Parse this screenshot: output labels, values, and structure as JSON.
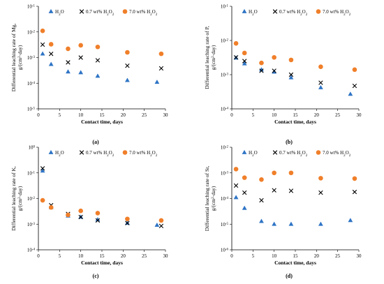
{
  "legend_labels": {
    "h2o": [
      "H",
      "2",
      "O"
    ],
    "p07": [
      "0.7 wt% H",
      "2",
      "O",
      "2"
    ],
    "p70": [
      "7.0 wt% H",
      "2",
      "O",
      "2"
    ]
  },
  "colors": {
    "h2o": "#2e74c5",
    "p07": "#000000",
    "p70": "#f07f2a"
  },
  "icons": {
    "h2o": "triangle-marker",
    "p07": "x-marker",
    "p70": "circle-marker"
  },
  "chart_data": [
    {
      "type": "scatter",
      "panel_label": "(a)",
      "xlabel": "Contact time, days",
      "ylabel_line1": "Differential leaching rate of Mg,",
      "ylabel_line2": [
        "g/(cm",
        "2",
        "·day)"
      ],
      "xlim": [
        0,
        30
      ],
      "xticks": [
        0,
        5,
        10,
        15,
        20,
        25,
        30
      ],
      "yscale": "log",
      "ylim_exp": [
        -5,
        -1
      ],
      "series": [
        {
          "key": "h2o",
          "x": [
            1,
            3,
            7,
            10,
            14,
            21,
            28
          ],
          "y": [
            0.0014,
            0.00055,
            0.00028,
            0.00026,
            0.00019,
            0.00013,
            0.00011
          ]
        },
        {
          "key": "p07",
          "x": [
            1,
            3,
            7,
            10,
            14,
            21,
            29
          ],
          "y": [
            0.0032,
            0.0014,
            0.00065,
            0.001,
            0.00078,
            0.00048,
            0.00038
          ]
        },
        {
          "key": "p70",
          "x": [
            1,
            3,
            7,
            10,
            14,
            21,
            29
          ],
          "y": [
            0.011,
            0.0033,
            0.0022,
            0.003,
            0.0026,
            0.0016,
            0.0014
          ]
        }
      ]
    },
    {
      "type": "scatter",
      "panel_label": "(b)",
      "xlabel": "Contact time, days",
      "ylabel_line1": "Differential leaching rate of P,",
      "ylabel_line2": [
        "g/(cm",
        "2",
        "·day)"
      ],
      "xlim": [
        0,
        30
      ],
      "xticks": [
        0,
        5,
        10,
        15,
        20,
        25,
        30
      ],
      "yscale": "log",
      "ylim_exp": [
        -4,
        -1
      ],
      "series": [
        {
          "key": "h2o",
          "x": [
            1,
            3,
            7,
            10,
            14,
            21,
            28
          ],
          "y": [
            0.0031,
            0.0021,
            0.0014,
            0.0012,
            0.00082,
            0.00042,
            0.00027
          ]
        },
        {
          "key": "p07",
          "x": [
            1,
            3,
            7,
            10,
            14,
            21,
            29
          ],
          "y": [
            0.0032,
            0.0025,
            0.0013,
            0.0013,
            0.001,
            0.00058,
            0.00047
          ]
        },
        {
          "key": "p70",
          "x": [
            1,
            3,
            7,
            10,
            14,
            21,
            29
          ],
          "y": [
            0.0082,
            0.0043,
            0.0022,
            0.0032,
            0.0027,
            0.0017,
            0.0014
          ]
        }
      ]
    },
    {
      "type": "scatter",
      "panel_label": "(c)",
      "xlabel": "Contact time, days",
      "ylabel_line1": "Differential leaching rate of K,",
      "ylabel_line2": [
        "g/(cm",
        "2",
        "·day)"
      ],
      "xlim": [
        0,
        30
      ],
      "xticks": [
        0,
        5,
        10,
        15,
        20,
        25,
        30
      ],
      "yscale": "log",
      "ylim_exp": [
        -4,
        0
      ],
      "series": [
        {
          "key": "h2o",
          "x": [
            1,
            3,
            7,
            10,
            14,
            21,
            28
          ],
          "y": [
            0.12,
            0.0045,
            0.0021,
            0.0019,
            0.0015,
            0.0011,
            0.00092
          ]
        },
        {
          "key": "p07",
          "x": [
            1,
            3,
            7,
            10,
            14,
            21,
            29
          ],
          "y": [
            0.15,
            0.0055,
            0.0025,
            0.0019,
            0.0014,
            0.0011,
            0.00085
          ]
        },
        {
          "key": "p70",
          "x": [
            1,
            3,
            7,
            10,
            14,
            21,
            29
          ],
          "y": [
            0.0085,
            0.0045,
            0.0023,
            0.0033,
            0.0027,
            0.0016,
            0.0014
          ]
        }
      ]
    },
    {
      "type": "scatter",
      "panel_label": "(d)",
      "xlabel": "Contact time, days",
      "ylabel_line1": "Differential leaching rate of Sr,",
      "ylabel_line2": [
        "g/(cm",
        "2",
        "·day)"
      ],
      "xlim": [
        0,
        30
      ],
      "xticks": [
        0,
        5,
        10,
        15,
        20,
        25,
        30
      ],
      "yscale": "log",
      "ylim_exp": [
        -6,
        -2
      ],
      "series": [
        {
          "key": "h2o",
          "x": [
            1,
            3,
            7,
            10,
            14,
            21,
            28
          ],
          "y": [
            0.00011,
            4.2e-05,
            1.3e-05,
            1e-05,
            1e-05,
            1e-05,
            1.4e-05
          ]
        },
        {
          "key": "p07",
          "x": [
            1,
            3,
            7,
            10,
            14,
            21,
            29
          ],
          "y": [
            0.00032,
            0.00017,
            8.5e-05,
            0.00021,
            0.0002,
            0.00017,
            0.00018
          ]
        },
        {
          "key": "p70",
          "x": [
            1,
            3,
            7,
            10,
            14,
            21,
            29
          ],
          "y": [
            0.0014,
            0.00065,
            0.00055,
            0.001,
            0.001,
            0.00062,
            0.0006
          ]
        }
      ]
    }
  ]
}
